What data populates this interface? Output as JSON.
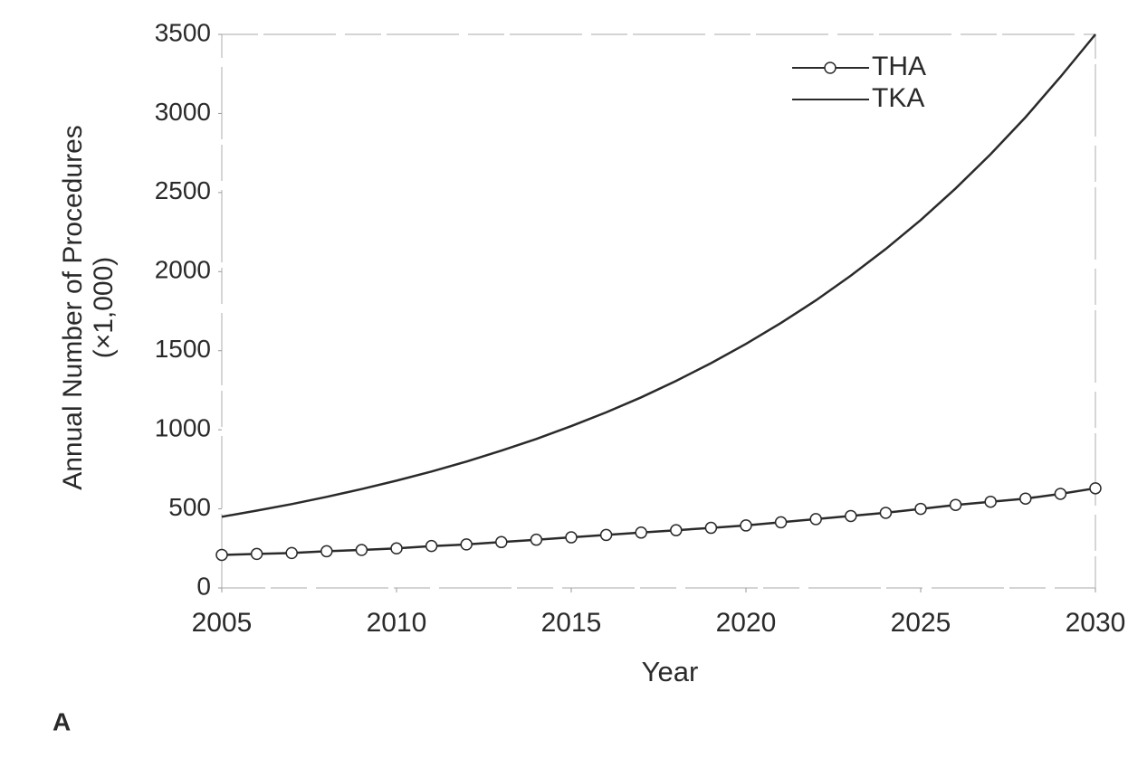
{
  "chart_data": {
    "type": "line",
    "xlabel": "Year",
    "ylabel": [
      "Annual Number of Procedures",
      "(×1,000)"
    ],
    "panel_label": "A",
    "x": [
      2005,
      2006,
      2007,
      2008,
      2009,
      2010,
      2011,
      2012,
      2013,
      2014,
      2015,
      2016,
      2017,
      2018,
      2019,
      2020,
      2021,
      2022,
      2023,
      2024,
      2025,
      2026,
      2027,
      2028,
      2029,
      2030
    ],
    "series": [
      {
        "name": "THA",
        "color": "#2a2a2a",
        "marker": "circle",
        "values": [
          209,
          215,
          221,
          232,
          240,
          250,
          265,
          275,
          290,
          305,
          320,
          335,
          350,
          365,
          380,
          395,
          415,
          435,
          455,
          475,
          500,
          525,
          545,
          565,
          595,
          630
        ]
      },
      {
        "name": "TKA",
        "color": "#2a2a2a",
        "marker": "none",
        "values": [
          450,
          489,
          530,
          576,
          625,
          678,
          736,
          799,
          868,
          942,
          1023,
          1110,
          1205,
          1309,
          1421,
          1543,
          1675,
          1818,
          1974,
          2143,
          2326,
          2526,
          2742,
          2976,
          3231,
          3500
        ]
      }
    ],
    "xlim": [
      2005,
      2030
    ],
    "xticks": [
      2005,
      2010,
      2015,
      2020,
      2025,
      2030
    ],
    "ylim": [
      0,
      3500
    ],
    "yticks": [
      0,
      500,
      1000,
      1500,
      2000,
      2500,
      3000,
      3500
    ],
    "grid": false,
    "legend": "upper right"
  }
}
